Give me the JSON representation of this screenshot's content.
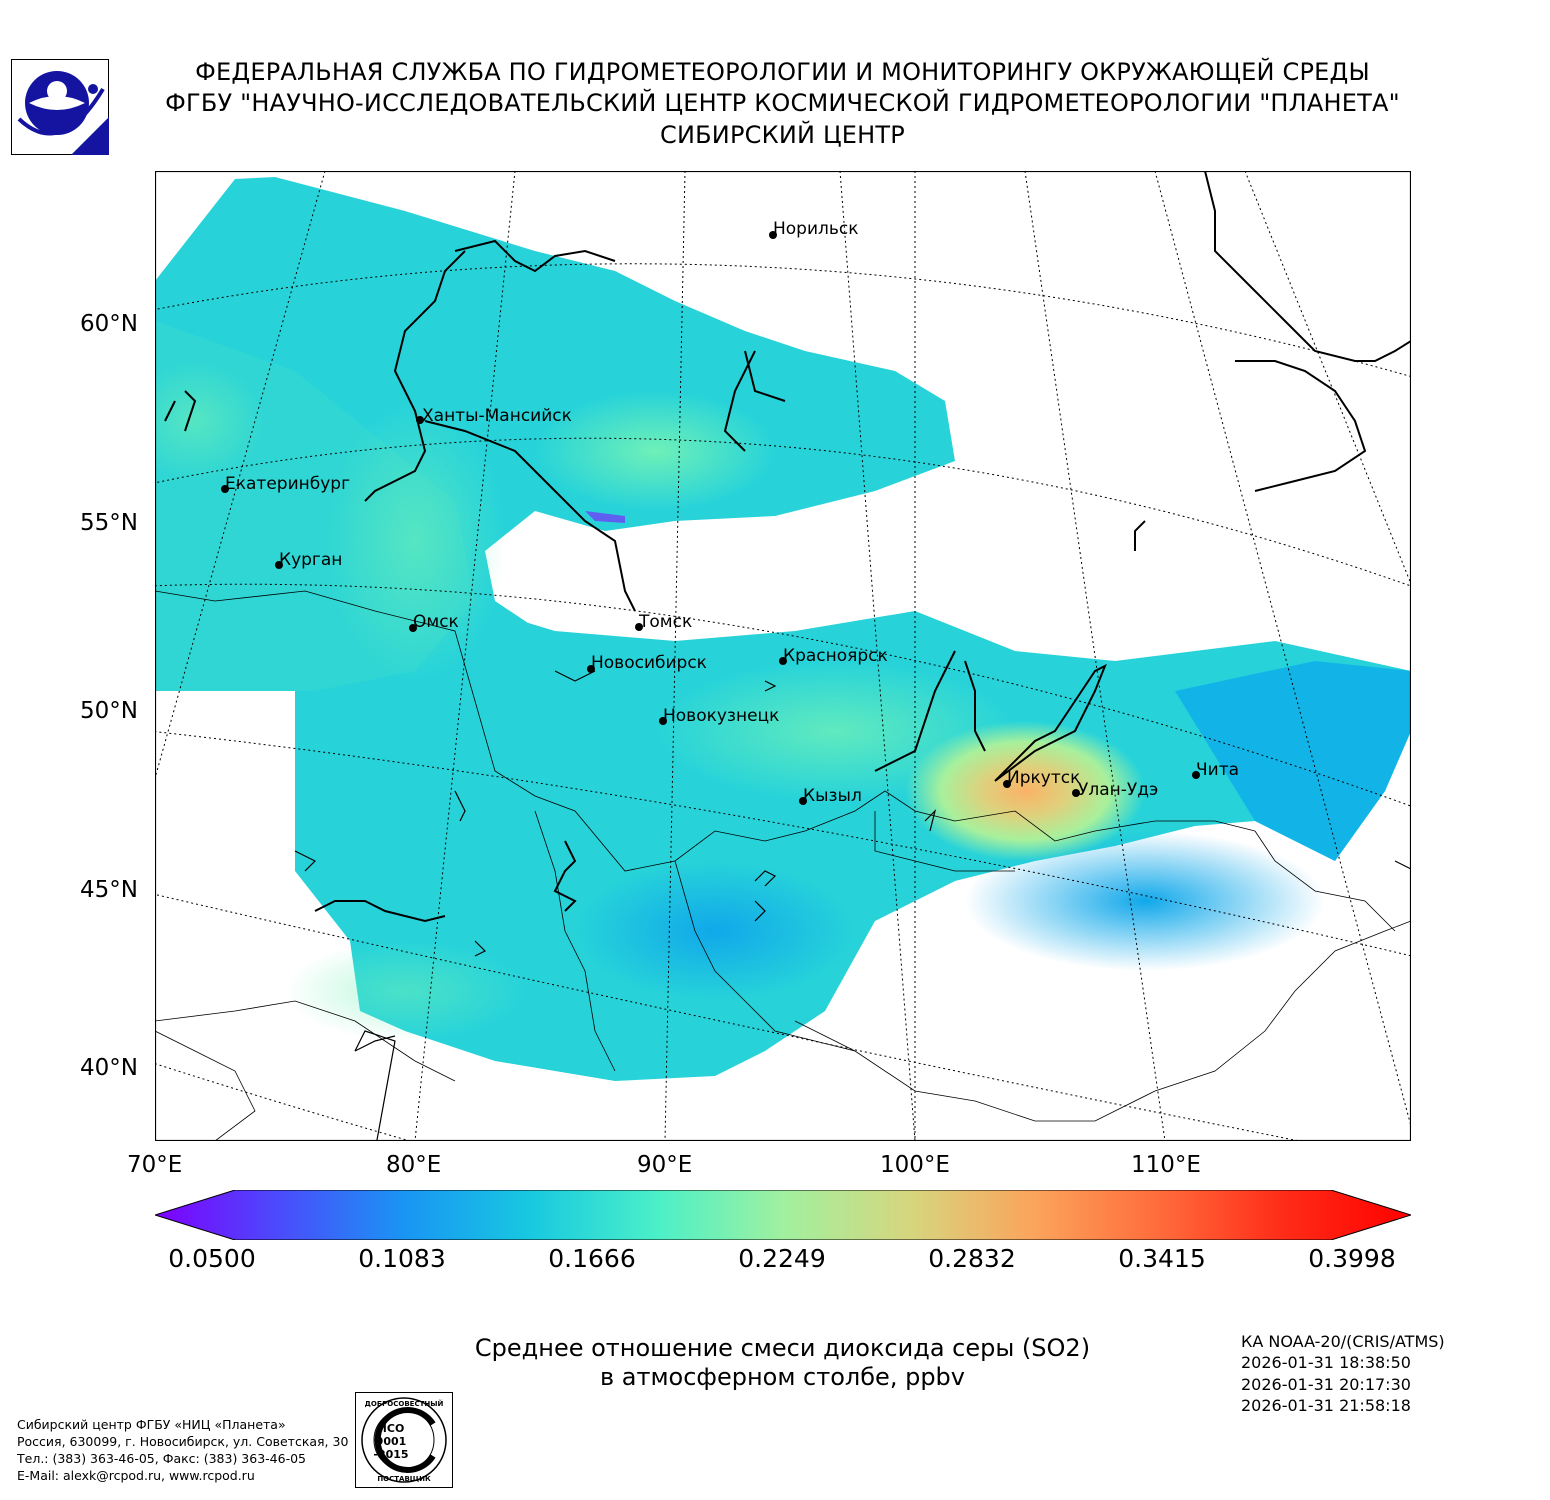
{
  "header": {
    "line1": "ФЕДЕРАЛЬНАЯ СЛУЖБА ПО ГИДРОМЕТЕОРОЛОГИИ И МОНИТОРИНГУ ОКРУЖАЮЩЕЙ СРЕДЫ",
    "line2": "ФГБУ \"НАУЧНО-ИССЛЕДОВАТЕЛЬСКИЙ ЦЕНТР КОСМИЧЕСКОЙ ГИДРОМЕТЕОРОЛОГИИ \"ПЛАНЕТА\"",
    "line3": "СИБИРСКИЙ ЦЕНТР"
  },
  "map": {
    "lat_labels": [
      "60°N",
      "55°N",
      "50°N",
      "45°N",
      "40°N"
    ],
    "lon_labels": [
      "70°E",
      "80°E",
      "90°E",
      "100°E",
      "110°E"
    ],
    "cities": [
      {
        "name": "Норильск"
      },
      {
        "name": "Ханты-Мансийск"
      },
      {
        "name": "Екатеринбург"
      },
      {
        "name": "Курган"
      },
      {
        "name": "Омск"
      },
      {
        "name": "Томск"
      },
      {
        "name": "Новосибирск"
      },
      {
        "name": "Красноярск"
      },
      {
        "name": "Новокузнецк"
      },
      {
        "name": "Кызыл"
      },
      {
        "name": "Иркутск"
      },
      {
        "name": "Улан-Удэ"
      },
      {
        "name": "Чита"
      }
    ]
  },
  "colorbar": {
    "ticks": [
      "0.0500",
      "0.1083",
      "0.1666",
      "0.2249",
      "0.2832",
      "0.3415",
      "0.3998"
    ],
    "min": 0.05,
    "max": 0.3998,
    "colors": [
      "#7f00ff",
      "#4a4cfb",
      "#1996f3",
      "#18c9e0",
      "#4bf0c8",
      "#a0f09f",
      "#d6d67f",
      "#fba45c",
      "#ff6b3b",
      "#ff2b17",
      "#ff0000"
    ]
  },
  "caption": {
    "line1": "Среднее отношение смеси диоксида серы (SO2)",
    "line2": "в атмосферном столбе, ppbv"
  },
  "satellite": {
    "name": "КА NOAA-20/(CRIS/ATMS)",
    "times": [
      "2026-01-31 18:38:50",
      "2026-01-31 20:17:30",
      "2026-01-31 21:58:18"
    ]
  },
  "address": {
    "line1": "Сибирский центр ФГБУ «НИЦ «Планета»",
    "line2": "Россия, 630099, г. Новосибирск, ул. Советская, 30",
    "line3": "Тел.: (383) 363-46-05, Факс: (383) 363-46-05",
    "line4": "E-Mail: alexk@rcpod.ru, www.rcpod.ru"
  },
  "iso_stamp": {
    "top_text": "ДОБРОСОВЕСТНЫЙ",
    "middle": [
      "ИСО",
      "9001",
      "-2015"
    ],
    "bottom_text": "ПОСТАВЩИК"
  }
}
